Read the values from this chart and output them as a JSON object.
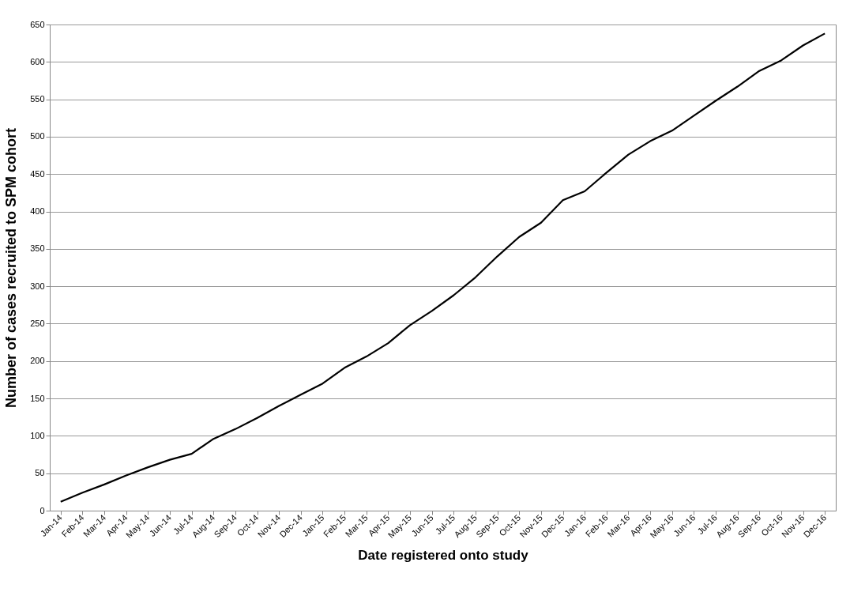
{
  "chart_data": {
    "type": "line",
    "xlabel": "Date registered onto study",
    "ylabel": "Number of cases recruited to SPM cohort",
    "categories": [
      "Jan-14",
      "Feb-14",
      "Mar-14",
      "Apr-14",
      "May-14",
      "Jun-14",
      "Jul-14",
      "Aug-14",
      "Sep-14",
      "Oct-14",
      "Nov-14",
      "Dec-14",
      "Jan-15",
      "Feb-15",
      "Mar-15",
      "Apr-15",
      "May-15",
      "Jun-15",
      "Jul-15",
      "Aug-15",
      "Sep-15",
      "Oct-15",
      "Nov-15",
      "Dec-15",
      "Jan-16",
      "Feb-16",
      "Mar-16",
      "Apr-16",
      "May-16",
      "Jun-16",
      "Jul-16",
      "Aug-16",
      "Sep-16",
      "Oct-16",
      "Nov-16",
      "Dec-16"
    ],
    "series": [
      {
        "color": "#000000",
        "values": [
          12,
          24,
          35,
          47,
          58,
          68,
          76,
          96,
          109,
          124,
          140,
          155,
          170,
          191,
          206,
          224,
          248,
          267,
          288,
          312,
          340,
          366,
          385,
          415,
          427,
          452,
          476,
          494,
          508,
          528,
          548,
          567,
          588,
          602,
          622,
          638
        ]
      }
    ],
    "ylim": [
      0,
      650
    ],
    "yticks": [
      0,
      50,
      100,
      150,
      200,
      250,
      300,
      350,
      400,
      450,
      500,
      550,
      600,
      650
    ],
    "grid": "y",
    "marker": "none",
    "line_style": "solid"
  }
}
